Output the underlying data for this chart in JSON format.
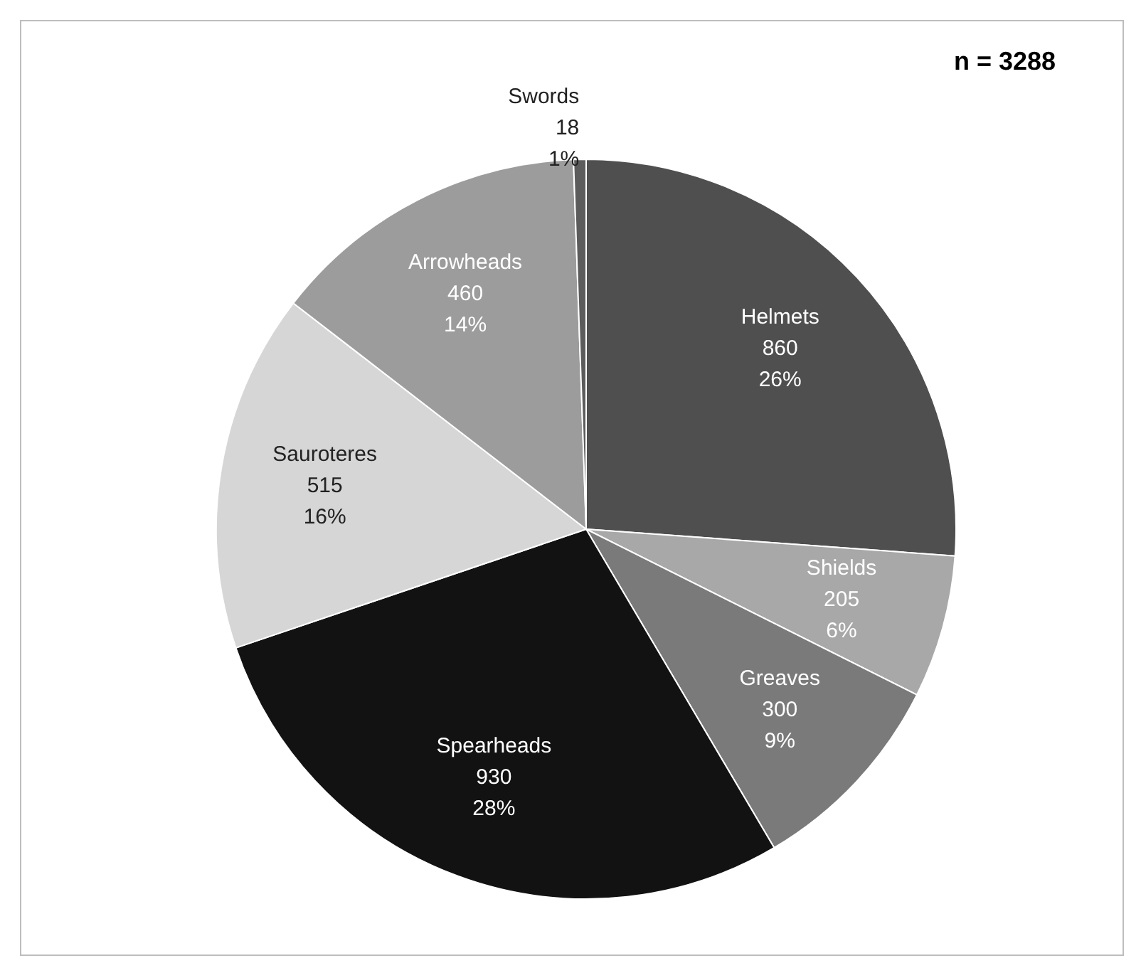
{
  "chart_data": {
    "type": "pie",
    "categories": [
      "Helmets",
      "Shields",
      "Greaves",
      "Spearheads",
      "Sauroteres",
      "Arrowheads",
      "Swords"
    ],
    "values": [
      860,
      205,
      300,
      930,
      515,
      460,
      18
    ],
    "colors": [
      "#4f4f4f",
      "#a8a8a8",
      "#7a7a7a",
      "#121212",
      "#d6d6d6",
      "#9c9c9c",
      "#5c5c5c"
    ],
    "value_labels": [
      "860\n26%",
      "205\n6%",
      "300\n9%",
      "930\n28%",
      "515\n16%",
      "460\n14%",
      "18\n1%"
    ],
    "annotations": [
      "n = 3288"
    ],
    "legend": false
  }
}
